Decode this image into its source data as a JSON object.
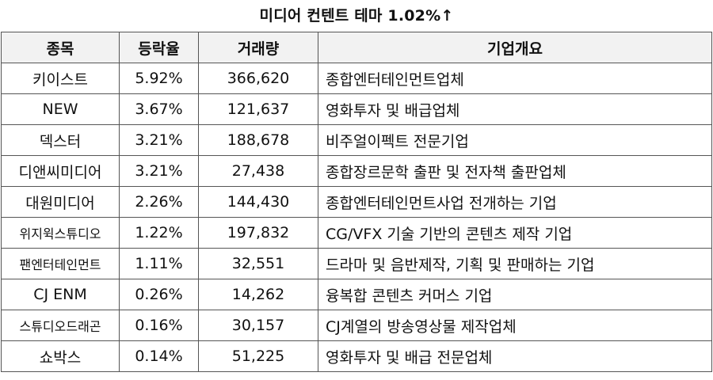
{
  "title": "미디어 컨텐트 테마 1.02%↑",
  "headers": {
    "name": "종목",
    "rate": "등락율",
    "volume": "거래량",
    "overview": "기업개요"
  },
  "rows": [
    {
      "name": "키이스트",
      "rate": "5.92%",
      "volume": "366,620",
      "overview": "종합엔터테인먼트업체"
    },
    {
      "name": "NEW",
      "rate": "3.67%",
      "volume": "121,637",
      "overview": "영화투자 및 배급업체"
    },
    {
      "name": "덱스터",
      "rate": "3.21%",
      "volume": "188,678",
      "overview": "비주얼이펙트 전문기업"
    },
    {
      "name": "디앤씨미디어",
      "rate": "3.21%",
      "volume": "27,438",
      "overview": "종합장르문학 출판 및 전자책 출판업체"
    },
    {
      "name": "대원미디어",
      "rate": "2.26%",
      "volume": "144,430",
      "overview": "종합엔터테인먼트사업 전개하는 기업"
    },
    {
      "name": "위지윅스튜디오",
      "rate": "1.22%",
      "volume": "197,832",
      "overview": "CG/VFX 기술 기반의 콘텐츠 제작 기업"
    },
    {
      "name": "팬엔터테인먼트",
      "rate": "1.11%",
      "volume": "32,551",
      "overview": "드라마 및 음반제작, 기획 및 판매하는 기업"
    },
    {
      "name": "CJ ENM",
      "rate": "0.26%",
      "volume": "14,262",
      "overview": "융복합 콘텐츠 커머스 기업"
    },
    {
      "name": "스튜디오드래곤",
      "rate": "0.16%",
      "volume": "30,157",
      "overview": "CJ계열의 방송영상물 제작업체"
    },
    {
      "name": "쇼박스",
      "rate": "0.14%",
      "volume": "51,225",
      "overview": "영화투자 및 배급 전문업체"
    }
  ]
}
